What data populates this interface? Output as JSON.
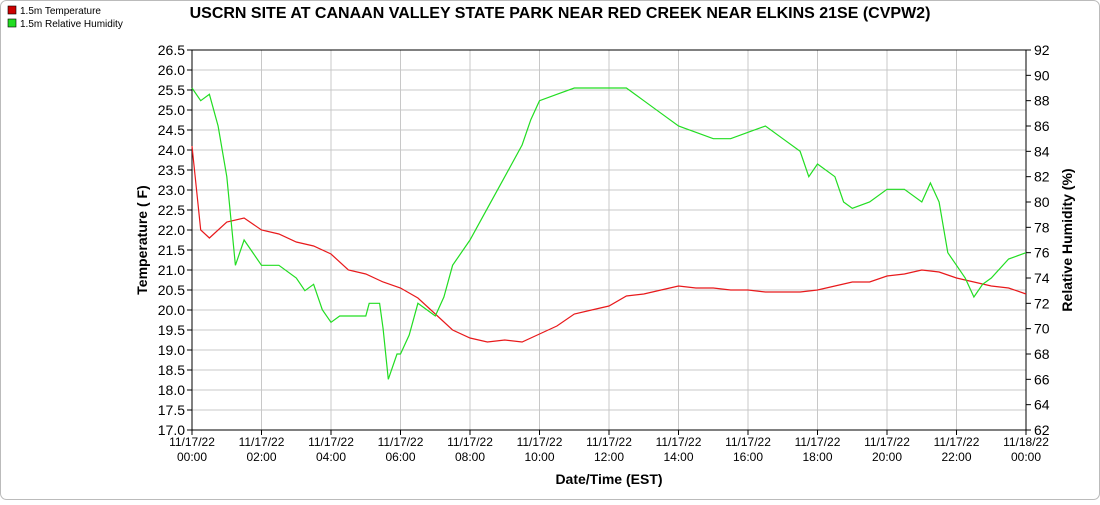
{
  "chart_data": {
    "type": "line",
    "title": "USCRN SITE AT CANAAN VALLEY STATE PARK NEAR RED CREEK NEAR ELKINS 21SE (CVPW2)",
    "xlabel": "Date/Time (EST)",
    "ylabel": "Temperature ( F)",
    "y2label": "Relative Humidity (%)",
    "grid": true,
    "legend": "top-left",
    "xlim": [
      0,
      24
    ],
    "xticks": [
      {
        "value": 0,
        "label": [
          "11/17/22",
          "00:00"
        ]
      },
      {
        "value": 2,
        "label": [
          "11/17/22",
          "02:00"
        ]
      },
      {
        "value": 4,
        "label": [
          "11/17/22",
          "04:00"
        ]
      },
      {
        "value": 6,
        "label": [
          "11/17/22",
          "06:00"
        ]
      },
      {
        "value": 8,
        "label": [
          "11/17/22",
          "08:00"
        ]
      },
      {
        "value": 10,
        "label": [
          "11/17/22",
          "10:00"
        ]
      },
      {
        "value": 12,
        "label": [
          "11/17/22",
          "12:00"
        ]
      },
      {
        "value": 14,
        "label": [
          "11/17/22",
          "14:00"
        ]
      },
      {
        "value": 16,
        "label": [
          "11/17/22",
          "16:00"
        ]
      },
      {
        "value": 18,
        "label": [
          "11/17/22",
          "18:00"
        ]
      },
      {
        "value": 20,
        "label": [
          "11/17/22",
          "20:00"
        ]
      },
      {
        "value": 22,
        "label": [
          "11/17/22",
          "22:00"
        ]
      },
      {
        "value": 24,
        "label": [
          "11/18/22",
          "00:00"
        ]
      }
    ],
    "ylim": [
      17,
      26.5
    ],
    "yticks": [
      {
        "value": 17,
        "label": "17.0"
      },
      {
        "value": 17.5,
        "label": "17.5"
      },
      {
        "value": 18,
        "label": "18.0"
      },
      {
        "value": 18.5,
        "label": "18.5"
      },
      {
        "value": 19,
        "label": "19.0"
      },
      {
        "value": 19.5,
        "label": "19.5"
      },
      {
        "value": 20,
        "label": "20.0"
      },
      {
        "value": 20.5,
        "label": "20.5"
      },
      {
        "value": 21,
        "label": "21.0"
      },
      {
        "value": 21.5,
        "label": "21.5"
      },
      {
        "value": 22,
        "label": "22.0"
      },
      {
        "value": 22.5,
        "label": "22.5"
      },
      {
        "value": 23,
        "label": "23.0"
      },
      {
        "value": 23.5,
        "label": "23.5"
      },
      {
        "value": 24,
        "label": "24.0"
      },
      {
        "value": 24.5,
        "label": "24.5"
      },
      {
        "value": 25,
        "label": "25.0"
      },
      {
        "value": 25.5,
        "label": "25.5"
      },
      {
        "value": 26,
        "label": "26.0"
      },
      {
        "value": 26.5,
        "label": "26.5"
      }
    ],
    "y2lim": [
      62,
      92
    ],
    "y2ticks": [
      62,
      64,
      66,
      68,
      70,
      72,
      74,
      76,
      78,
      80,
      82,
      84,
      86,
      88,
      90,
      92
    ],
    "series": [
      {
        "name": "1.5m Temperature",
        "color": "#e8191b",
        "legend_color": "#cc0000",
        "x": [
          0,
          0.25,
          0.5,
          1,
          1.5,
          2,
          2.5,
          3,
          3.5,
          4,
          4.5,
          5,
          5.5,
          6,
          6.5,
          7,
          7.5,
          8,
          8.5,
          9,
          9.5,
          10,
          10.5,
          11,
          11.5,
          12,
          12.5,
          13,
          13.5,
          14,
          14.5,
          15,
          15.5,
          16,
          16.5,
          17,
          17.5,
          18,
          18.5,
          19,
          19.5,
          20,
          20.5,
          21,
          21.5,
          22,
          22.5,
          23,
          23.5,
          24
        ],
        "values": [
          24.1,
          22.0,
          21.8,
          22.2,
          22.3,
          22.0,
          21.9,
          21.7,
          21.6,
          21.4,
          21.0,
          20.9,
          20.7,
          20.55,
          20.3,
          19.9,
          19.5,
          19.3,
          19.2,
          19.25,
          19.2,
          19.4,
          19.6,
          19.9,
          20.0,
          20.1,
          20.35,
          20.4,
          20.5,
          20.6,
          20.55,
          20.55,
          20.5,
          20.5,
          20.45,
          20.45,
          20.45,
          20.5,
          20.6,
          20.7,
          20.7,
          20.85,
          20.9,
          21.0,
          20.95,
          20.8,
          20.7,
          20.6,
          20.55,
          20.4
        ]
      },
      {
        "name": "1.5m Relative Humidity",
        "color": "#22dd22",
        "legend_color": "#22dd22",
        "axis": "y2",
        "x": [
          0,
          0.25,
          0.5,
          0.75,
          1,
          1.25,
          1.5,
          2,
          2.5,
          3,
          3.25,
          3.5,
          3.75,
          4,
          4.25,
          4.5,
          5,
          5.1,
          5.4,
          5.5,
          5.65,
          5.9,
          6,
          6.25,
          6.5,
          7,
          7.25,
          7.5,
          8,
          8.5,
          9,
          9.5,
          9.75,
          10,
          10.5,
          11,
          11.5,
          12,
          12.5,
          13,
          13.5,
          14,
          14.5,
          15,
          15.5,
          16,
          16.5,
          17,
          17.5,
          17.75,
          18,
          18.5,
          18.75,
          19,
          19.5,
          20,
          20.5,
          21,
          21.25,
          21.5,
          21.75,
          22,
          22.25,
          22.5,
          22.75,
          23,
          23.5,
          24
        ],
        "values": [
          89,
          88,
          88.5,
          86,
          82,
          75,
          77,
          75,
          75,
          74,
          73,
          73.5,
          71.5,
          70.5,
          71,
          71,
          71,
          72,
          72,
          70,
          66,
          68,
          68,
          69.5,
          72,
          71,
          72.5,
          75,
          77,
          79.5,
          82,
          84.5,
          86.5,
          88,
          88.5,
          89,
          89,
          89,
          89,
          88,
          87,
          86,
          85.5,
          85,
          85,
          85.5,
          86,
          85,
          84,
          82,
          83,
          82,
          80,
          79.5,
          80,
          81,
          81,
          80,
          81.5,
          80,
          76,
          75,
          74,
          72.5,
          73.5,
          74,
          75.5,
          76
        ]
      }
    ]
  }
}
